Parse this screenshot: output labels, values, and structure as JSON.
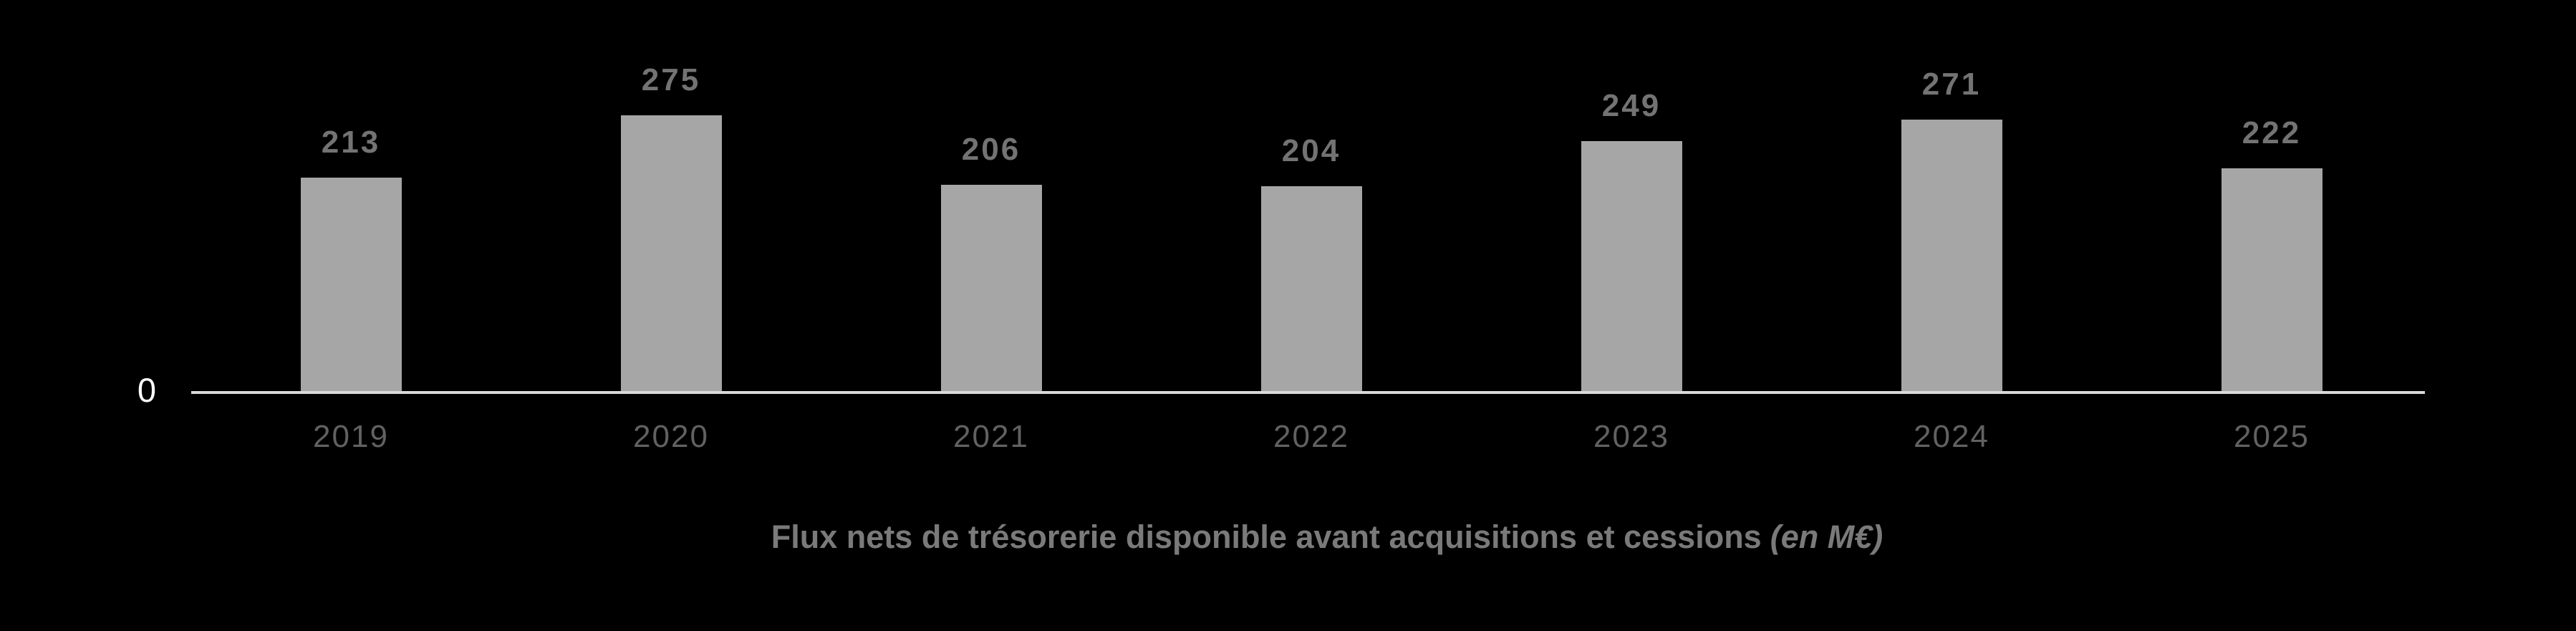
{
  "chart_data": {
    "type": "bar",
    "categories": [
      "2019",
      "2020",
      "2021",
      "2022",
      "2023",
      "2024",
      "2025"
    ],
    "values": [
      213,
      275,
      206,
      204,
      249,
      271,
      222
    ],
    "title": "Flux nets de trésorerie disponible avant acquisitions et cessions",
    "title_suffix": "(en M€)",
    "baseline_label": "0",
    "xlabel": "",
    "ylabel": "",
    "ylim": [
      0,
      300
    ],
    "grid": false,
    "legend": false,
    "value_labels_position": "above bars",
    "colors": {
      "background": "#000000",
      "bar": "#a6a6a6",
      "value_label": "#737373",
      "category_label": "#616161",
      "axis_line": "#d9d9d9",
      "baseline_label": "#ffffff",
      "title": "#7a7a7a"
    }
  }
}
